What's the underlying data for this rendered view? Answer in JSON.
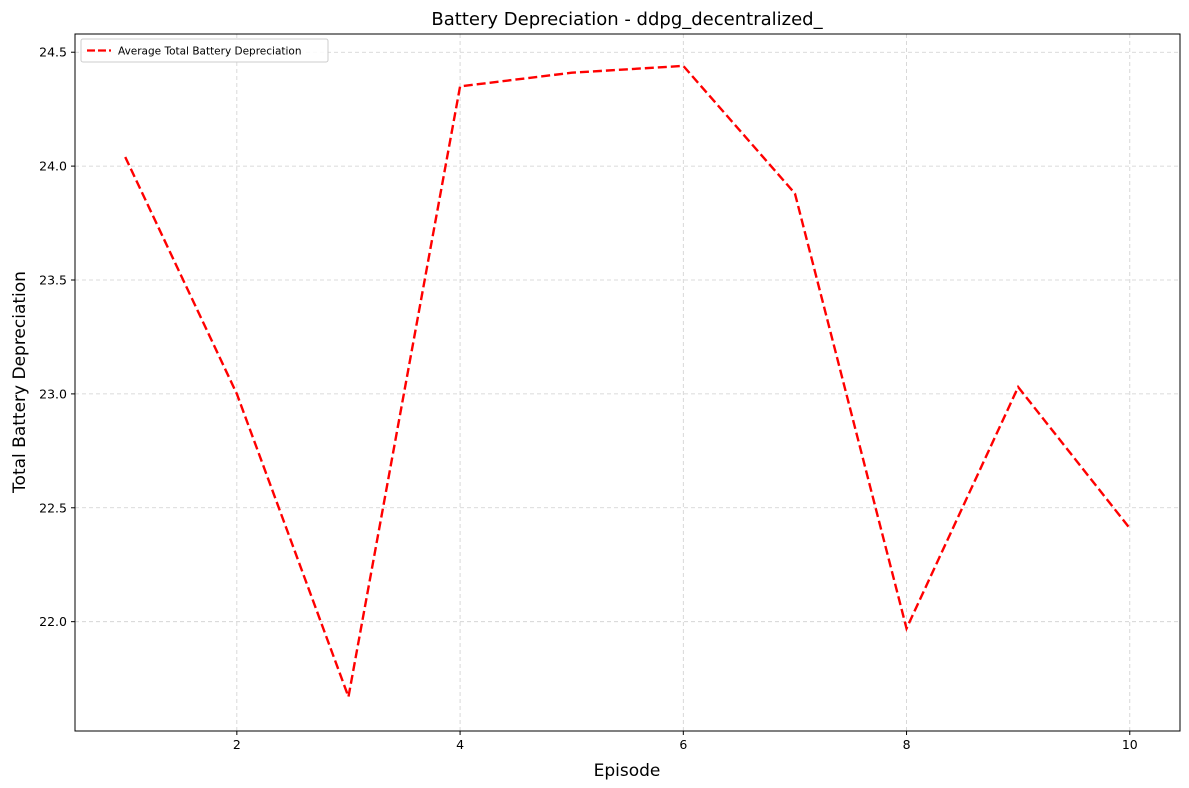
{
  "chart_data": {
    "type": "line",
    "title": "Battery Depreciation - ddpg_decentralized_",
    "xlabel": "Episode",
    "ylabel": "Total Battery Depreciation",
    "x": [
      1,
      2,
      3,
      4,
      5,
      6,
      7,
      8,
      9,
      10
    ],
    "series": [
      {
        "name": "Average Total Battery Depreciation",
        "values": [
          24.04,
          23.0,
          21.67,
          24.35,
          24.41,
          24.44,
          23.88,
          21.97,
          23.03,
          22.41
        ],
        "color": "#ff0000",
        "line_style": "dashed"
      }
    ],
    "xlim": [
      0.55,
      10.45
    ],
    "ylim": [
      21.52,
      24.58
    ],
    "x_ticks": [
      2,
      4,
      6,
      8,
      10
    ],
    "x_tick_labels": [
      "2",
      "4",
      "6",
      "8",
      "10"
    ],
    "y_ticks": [
      22.0,
      22.5,
      23.0,
      23.5,
      24.0,
      24.5
    ],
    "y_tick_labels": [
      "22.0",
      "22.5",
      "23.0",
      "23.5",
      "24.0",
      "24.5"
    ],
    "grid": true,
    "legend_position": "top-left"
  }
}
